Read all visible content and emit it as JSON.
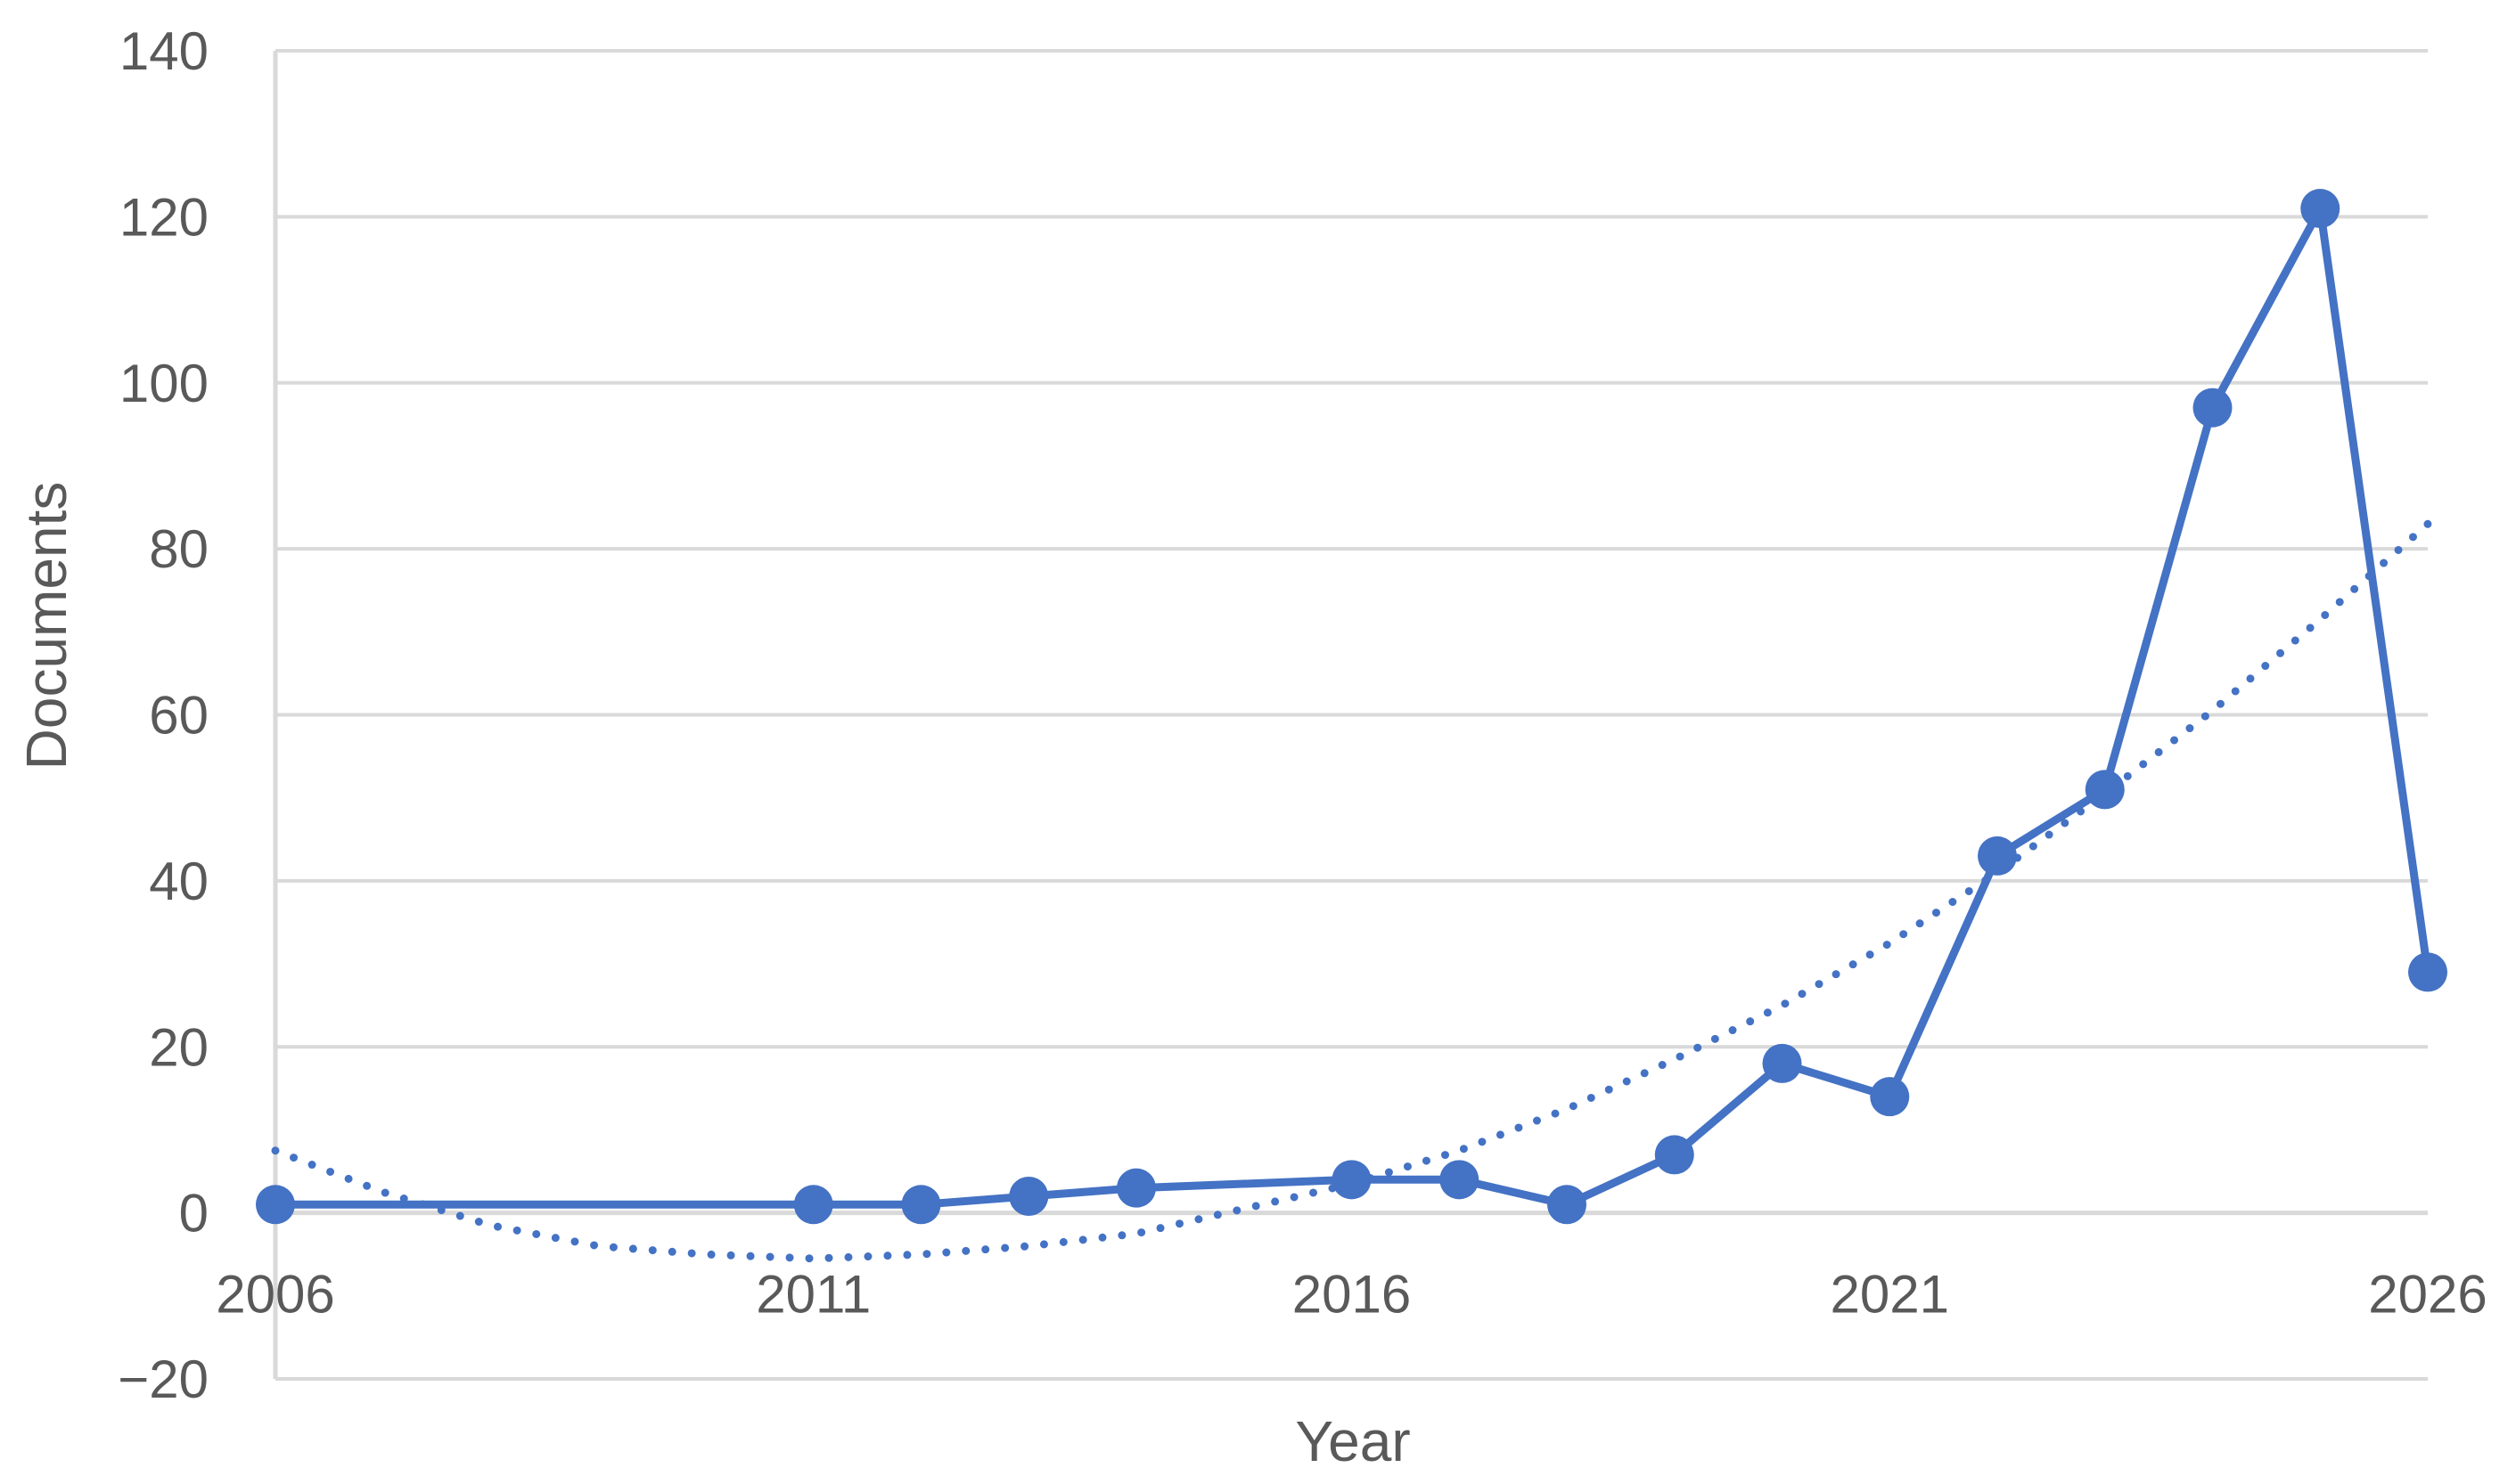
{
  "chart_data": {
    "type": "line",
    "title": "",
    "xlabel": "Year",
    "ylabel": "Documents",
    "xlim": [
      2006,
      2026
    ],
    "ylim": [
      -20,
      140
    ],
    "x_ticks": [
      2006,
      2011,
      2016,
      2021,
      2026
    ],
    "y_ticks": [
      -20,
      0,
      20,
      40,
      60,
      80,
      100,
      120,
      140
    ],
    "x_tick_labels": [
      "2006",
      "2011",
      "2016",
      "2021",
      "2026"
    ],
    "y_tick_labels": [
      "−20",
      "0",
      "20",
      "40",
      "60",
      "80",
      "100",
      "120",
      "140"
    ],
    "grid": true,
    "legend": "none",
    "series": [
      {
        "x": [
          2006,
          2011,
          2012,
          2013,
          2014,
          2016,
          2017,
          2018,
          2019,
          2020,
          2021,
          2022,
          2023,
          2024,
          2025,
          2026
        ],
        "values": [
          1,
          1,
          1,
          2,
          3,
          4,
          4,
          1,
          7,
          18,
          14,
          43,
          51,
          97,
          121,
          29
        ],
        "color": "#4472C4",
        "style": "solid",
        "markers": true
      },
      {
        "x": [
          2006,
          2007,
          2008,
          2009,
          2010,
          2011,
          2012,
          2013,
          2014,
          2015,
          2016,
          2017,
          2018,
          2019,
          2020,
          2021,
          2022,
          2023,
          2024,
          2025,
          2026
        ],
        "values": [
          7.5,
          2.5,
          -1.5,
          -4.0,
          -5.0,
          -5.5,
          -5.0,
          -4.0,
          -2.5,
          0.5,
          3.5,
          7.5,
          12.5,
          18.5,
          25.0,
          32.5,
          41.0,
          50.5,
          60.5,
          71.5,
          83.0
        ],
        "color": "#4472C4",
        "style": "dotted",
        "markers": false,
        "trendline": "polynomial"
      }
    ]
  },
  "colors": {
    "grid": "#D9D9D9",
    "axis": "#D9D9D9",
    "text": "#595959",
    "series": "#4472C4"
  }
}
